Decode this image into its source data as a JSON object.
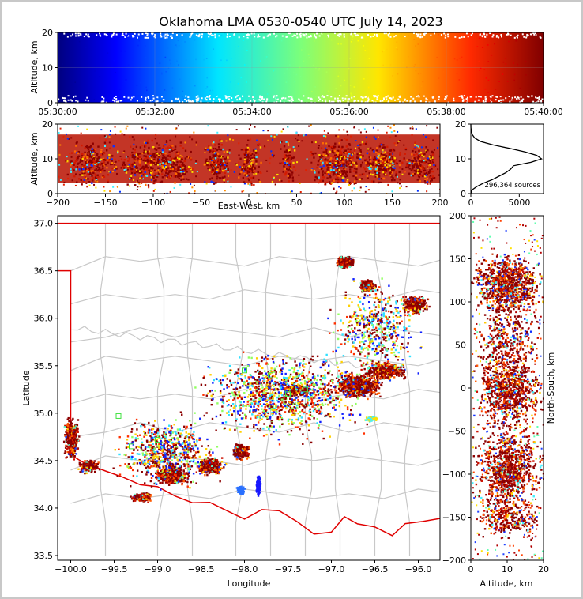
{
  "chart_data": [
    {
      "type": "scatter",
      "panel": "altitude-time",
      "title": "Oklahoma LMA 0530-0540 UTC July 14, 2023",
      "xlabel": "",
      "ylabel": "Altitude, km",
      "xticks": [
        "05:30:00",
        "05:32:00",
        "05:34:00",
        "05:36:00",
        "05:38:00",
        "05:40:00"
      ],
      "yticks": [
        "0",
        "10",
        "20"
      ],
      "xlim": [
        "05:30:00",
        "05:40:00"
      ],
      "ylim": [
        0,
        20
      ],
      "color_by": "time",
      "colormap": "jet"
    },
    {
      "type": "scatter",
      "panel": "altitude-east-west",
      "xlabel": "East-West, km",
      "ylabel": "Altitude, km",
      "xticks": [
        "−200",
        "−150",
        "−100",
        "−50",
        "0",
        "50",
        "100",
        "150",
        "200"
      ],
      "yticks": [
        "0",
        "10",
        "20"
      ],
      "xlim": [
        -200,
        200
      ],
      "ylim": [
        0,
        20
      ]
    },
    {
      "type": "line",
      "panel": "altitude-histogram",
      "annotation": "296,364 sources",
      "xticks": [
        "0",
        "5000"
      ],
      "yticks": [
        "0",
        "10",
        "20"
      ],
      "xlim": [
        0,
        7500
      ],
      "ylim": [
        0,
        20
      ],
      "profile": [
        [
          0,
          0
        ],
        [
          100,
          1
        ],
        [
          600,
          2
        ],
        [
          1300,
          3
        ],
        [
          2200,
          4
        ],
        [
          2900,
          5
        ],
        [
          3600,
          6
        ],
        [
          4100,
          7
        ],
        [
          4400,
          8
        ],
        [
          6200,
          9
        ],
        [
          7300,
          10
        ],
        [
          6800,
          11
        ],
        [
          5600,
          12
        ],
        [
          4000,
          13
        ],
        [
          2300,
          14
        ],
        [
          1000,
          15
        ],
        [
          400,
          16
        ],
        [
          150,
          17
        ],
        [
          50,
          18
        ],
        [
          10,
          19
        ],
        [
          0,
          20
        ]
      ]
    },
    {
      "type": "scatter",
      "panel": "plan-view",
      "xlabel": "Longitude",
      "ylabel": "Latitude",
      "xticks": [
        "−100.0",
        "−99.5",
        "−99.0",
        "−98.5",
        "−98.0",
        "−97.5",
        "−97.0",
        "−96.5",
        "−96.0"
      ],
      "yticks": [
        "33.5",
        "34.0",
        "34.5",
        "35.0",
        "35.5",
        "36.0",
        "36.5",
        "37.0"
      ],
      "xlim": [
        -100.15,
        -95.75
      ],
      "ylim": [
        33.45,
        37.08
      ],
      "grid": false
    },
    {
      "type": "scatter",
      "panel": "north-south-altitude",
      "xlabel": "Altitude, km",
      "ylabel": "North-South, km",
      "xticks": [
        "0",
        "10",
        "20"
      ],
      "yticks": [
        "−200",
        "−150",
        "−100",
        "−50",
        "0",
        "50",
        "100",
        "150",
        "200"
      ],
      "xlim": [
        0,
        20
      ],
      "ylim": [
        -200,
        200
      ]
    }
  ],
  "colors": {
    "background": "#ffffff",
    "frame": "#c8c8c8",
    "state_border": "#e00000",
    "county_border": "#c8c8c8",
    "histogram_line": "#000000"
  }
}
